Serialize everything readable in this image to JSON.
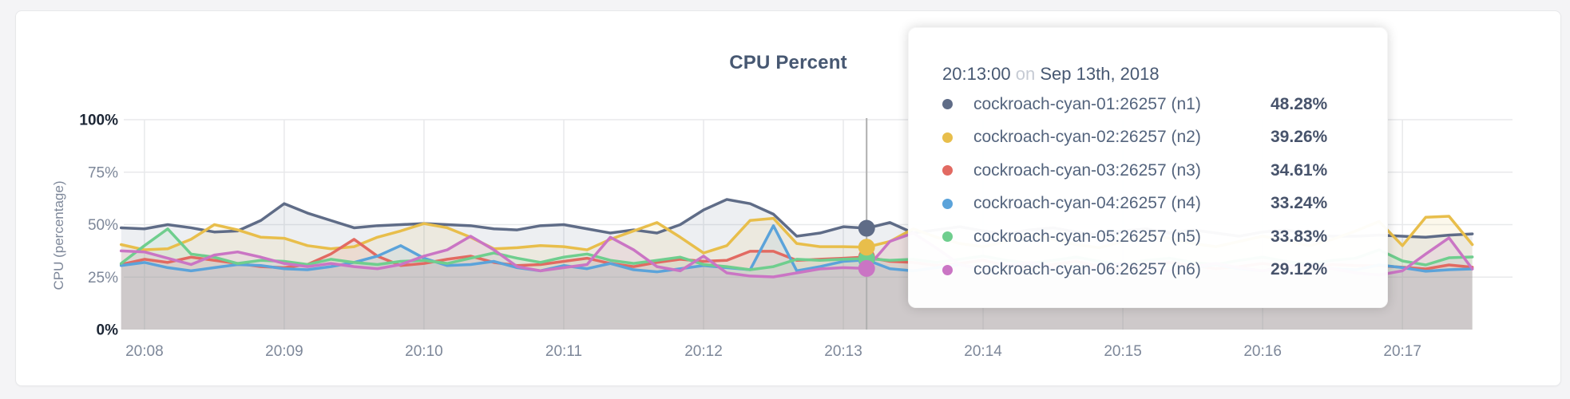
{
  "theme": {
    "page_background": "#F4F4F6",
    "card_background": "#FFFFFF",
    "title_color": "#475872",
    "axis_label_color": "#7D8799",
    "axis_label_dark_color": "#1C2635",
    "grid_color": "#E8E9EB",
    "hover_line_color": "#AFAFAF",
    "fill_opacity": 0.11
  },
  "chart_data": {
    "type": "area",
    "title": "CPU Percent",
    "ylabel": "CPU (percentage)",
    "xlabel": "",
    "ylim": [
      0,
      100
    ],
    "y_ticks": [
      "0%",
      "25%",
      "50%",
      "75%",
      "100%"
    ],
    "y_tick_values": [
      0,
      25,
      50,
      75,
      100
    ],
    "grid": true,
    "legend_position": "tooltip-only",
    "x_ticks": [
      "20:08",
      "20:09",
      "20:10",
      "20:11",
      "20:12",
      "20:13",
      "20:14",
      "20:15",
      "20:16",
      "20:17"
    ],
    "x_start_time": "20:07:50",
    "x_end_time": "20:17:30",
    "x_interval_seconds": 10,
    "hover": {
      "index": 32,
      "time": "20:13:00",
      "date": "Sep 13th, 2018"
    },
    "series": [
      {
        "name": "cockroach-cyan-01:26257 (n1)",
        "color": "#5F6C87",
        "values": [
          48.5,
          48,
          50,
          48.5,
          46.5,
          47,
          52,
          60,
          55.5,
          52,
          48.5,
          49.5,
          50,
          50.5,
          50,
          49.5,
          48,
          47.5,
          49.5,
          50,
          48,
          46,
          47.5,
          46,
          50,
          57,
          62,
          60,
          55,
          44.5,
          46,
          49,
          48.28,
          51,
          46,
          47.5,
          49,
          47,
          45.5,
          47.5,
          48.5,
          46.5,
          45,
          47,
          48,
          46,
          47.5,
          46,
          44.5,
          46.5,
          47.5,
          45.5,
          44.5,
          44.5,
          45,
          44.5,
          44,
          45,
          45.6
        ]
      },
      {
        "name": "cockroach-cyan-02:26257 (n2)",
        "color": "#E8BE4B",
        "values": [
          40.5,
          38,
          38.5,
          43,
          50,
          47.5,
          44,
          43.5,
          40,
          38.5,
          39.5,
          44,
          47,
          50.5,
          48.5,
          44,
          38.5,
          39,
          40,
          39.5,
          38,
          43,
          47,
          51,
          44,
          36.5,
          40,
          52,
          53,
          41,
          39.5,
          39.5,
          39.26,
          42,
          48,
          44,
          41,
          39.5,
          42,
          45.5,
          43,
          40.5,
          39,
          42,
          45,
          43.5,
          41,
          39.5,
          42,
          44.5,
          42.5,
          40,
          43,
          47,
          51.5,
          40,
          53.5,
          54,
          40.5
        ]
      },
      {
        "name": "cockroach-cyan-03:26257 (n3)",
        "color": "#E26A62",
        "values": [
          31,
          33.5,
          32,
          34.5,
          33,
          31.5,
          30,
          29.5,
          31,
          36,
          43,
          35,
          30.5,
          31.5,
          33.5,
          35,
          32,
          30.5,
          31,
          32.5,
          34,
          31.5,
          30,
          32,
          33.5,
          32.5,
          33,
          37.3,
          37.3,
          33,
          33.5,
          34,
          34.61,
          32.5,
          32,
          30.5,
          31.5,
          33,
          30.5,
          29.5,
          31,
          32.5,
          30,
          29,
          30.5,
          32,
          30.5,
          29,
          30,
          31.5,
          30,
          29.5,
          31,
          30.5,
          30.4,
          29.7,
          28.9,
          30.8,
          29.7
        ]
      },
      {
        "name": "cockroach-cyan-04:26257 (n4)",
        "color": "#5BA3DA",
        "values": [
          30.5,
          32,
          29.5,
          28,
          29.5,
          31,
          30.5,
          29,
          28.5,
          30,
          32,
          35,
          40,
          34,
          30.5,
          31,
          32.5,
          29.5,
          28,
          30.5,
          29,
          31.5,
          28.5,
          27.5,
          29,
          30.5,
          29.5,
          28.5,
          49.5,
          28,
          30,
          32.5,
          33.24,
          29,
          28,
          29.5,
          31,
          28.5,
          30,
          31.5,
          29,
          28,
          30,
          31.5,
          29.5,
          28,
          29.5,
          31,
          29,
          28,
          30,
          31.5,
          29,
          28.5,
          30.8,
          29.5,
          27.8,
          28.5,
          28.9
        ]
      },
      {
        "name": "cockroach-cyan-05:26257 (n5)",
        "color": "#6FCE8E",
        "values": [
          31.5,
          40,
          48,
          36,
          34.5,
          31.5,
          33,
          32.5,
          31,
          33.5,
          32,
          31,
          32.5,
          33,
          31.5,
          34,
          36.5,
          34,
          32,
          34.5,
          36,
          33,
          31.5,
          33,
          34.5,
          31,
          30,
          28.5,
          30,
          33.5,
          33,
          33.5,
          33.83,
          33,
          33.5,
          32,
          33.5,
          35,
          33,
          31.5,
          33,
          34.5,
          32.5,
          31,
          33,
          34,
          32,
          31,
          33,
          34.5,
          32.5,
          31,
          33,
          34,
          38,
          32.7,
          30.8,
          34.2,
          34.6
        ]
      },
      {
        "name": "cockroach-cyan-06:26257 (n6)",
        "color": "#CA75C4",
        "values": [
          37.5,
          37,
          34,
          31,
          35.5,
          37,
          34.5,
          31.5,
          30,
          31.5,
          30,
          29,
          31,
          35,
          38,
          44.5,
          38,
          30,
          28,
          29.5,
          31,
          44,
          38,
          30,
          28,
          35,
          27,
          25.5,
          25.1,
          27,
          28.9,
          29.5,
          29.12,
          42,
          46,
          38.8,
          31,
          29,
          30.5,
          32,
          29.5,
          28,
          30,
          31.5,
          29,
          28,
          30,
          31.5,
          29.5,
          28,
          30,
          31,
          29,
          27,
          26,
          28,
          36,
          43.7,
          28.9
        ]
      }
    ]
  },
  "tooltip": {
    "time": "20:13:00",
    "on_word": "on",
    "date": "Sep 13th, 2018",
    "rows": [
      {
        "label": "cockroach-cyan-01:26257 (n1)",
        "value": "48.28%",
        "color": "#5F6C87"
      },
      {
        "label": "cockroach-cyan-02:26257 (n2)",
        "value": "39.26%",
        "color": "#E8BE4B"
      },
      {
        "label": "cockroach-cyan-03:26257 (n3)",
        "value": "34.61%",
        "color": "#E26A62"
      },
      {
        "label": "cockroach-cyan-04:26257 (n4)",
        "value": "33.24%",
        "color": "#5BA3DA"
      },
      {
        "label": "cockroach-cyan-05:26257 (n5)",
        "value": "33.83%",
        "color": "#6FCE8E"
      },
      {
        "label": "cockroach-cyan-06:26257 (n6)",
        "value": "29.12%",
        "color": "#CA75C4"
      }
    ]
  }
}
